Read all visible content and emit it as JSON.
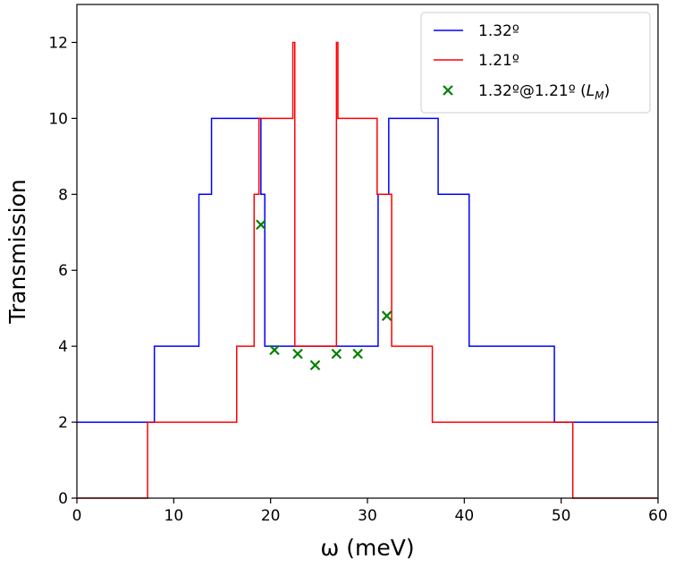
{
  "chart_data": {
    "type": "line",
    "title": "",
    "xlabel": "ω (meV)",
    "ylabel": "Transmission",
    "xlim": [
      0,
      60
    ],
    "ylim": [
      0,
      13
    ],
    "xticks": [
      0,
      10,
      20,
      30,
      40,
      50,
      60
    ],
    "yticks": [
      0,
      2,
      4,
      6,
      8,
      10,
      12
    ],
    "xtick_labels": [
      "0",
      "10",
      "20",
      "30",
      "40",
      "50",
      "60"
    ],
    "ytick_labels": [
      "0",
      "2",
      "4",
      "6",
      "8",
      "10",
      "12"
    ],
    "grid": false,
    "legend_position": "top-right",
    "series": [
      {
        "name": "1.32º",
        "label": "1.32º",
        "style": "step-line",
        "color": "#0000ff",
        "x": [
          0,
          8,
          8,
          12.6,
          12.6,
          13.9,
          13.9,
          19.0,
          19.0,
          19.4,
          19.4,
          31.1,
          31.1,
          32.2,
          32.2,
          37.3,
          37.3,
          40.5,
          40.5,
          49.3,
          49.3,
          60
        ],
        "y": [
          2,
          2,
          4,
          4,
          8,
          8,
          10,
          10,
          8,
          8,
          4,
          4,
          8,
          8,
          10,
          10,
          8,
          8,
          4,
          4,
          2,
          2
        ]
      },
      {
        "name": "1.21º",
        "label": "1.21º",
        "style": "step-line",
        "color": "#ff0000",
        "x": [
          0,
          7.3,
          7.3,
          16.5,
          16.5,
          18.3,
          18.3,
          18.8,
          18.8,
          22.3,
          22.3,
          22.5,
          22.5,
          26.8,
          26.8,
          26.95,
          26.95,
          31.0,
          31.0,
          31.5,
          31.5,
          32.5,
          32.5,
          36.7,
          36.7,
          51.2,
          51.2,
          60
        ],
        "y": [
          0,
          0,
          2,
          2,
          4,
          4,
          8,
          8,
          10,
          10,
          12,
          12,
          4,
          4,
          12,
          12,
          10,
          10,
          8,
          8,
          8,
          8,
          4,
          4,
          2,
          2,
          0,
          0
        ]
      },
      {
        "name": "1.32º@1.21º (L_M)",
        "label_prefix": "1.32º@1.21º (",
        "label_var": "L",
        "label_sub": "M",
        "label_suffix": ")",
        "style": "scatter",
        "marker": "x",
        "color": "#008000",
        "x": [
          19.0,
          20.4,
          22.8,
          24.6,
          26.8,
          29.0,
          32.0
        ],
        "y": [
          7.2,
          3.9,
          3.8,
          3.5,
          3.8,
          3.8,
          4.8
        ]
      }
    ]
  }
}
